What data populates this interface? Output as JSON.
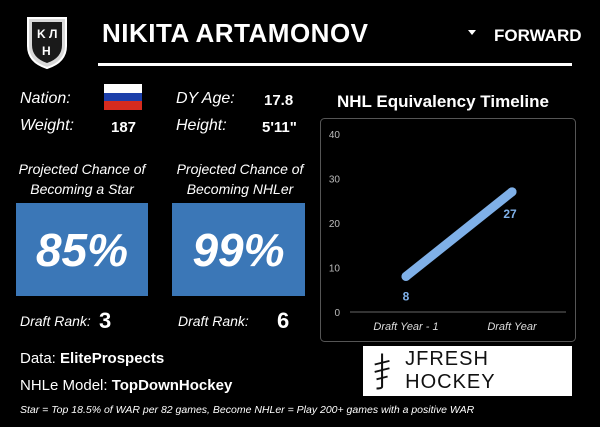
{
  "header": {
    "logo_text": "KHL",
    "player_name": "NIKITA ARTAMONOV",
    "position": "FORWARD"
  },
  "bio": {
    "nation_label": "Nation:",
    "nation_flag_colors": [
      "#ffffff",
      "#1c3faa",
      "#d52b1e"
    ],
    "weight_label": "Weight:",
    "weight_value": "187",
    "dy_age_label": "DY Age:",
    "dy_age_value": "17.8",
    "height_label": "Height:",
    "height_value": "5'11\""
  },
  "star_card": {
    "title_line1": "Projected Chance of",
    "title_line2": "Becoming a Star",
    "value": "85%",
    "rank_label": "Draft Rank:",
    "rank_value": "3"
  },
  "nhler_card": {
    "title_line1": "Projected Chance of",
    "title_line2": "Becoming NHLer",
    "value": "99%",
    "rank_label": "Draft Rank:",
    "rank_value": "6"
  },
  "box_color": "#3b77b7",
  "chart_data": {
    "type": "line",
    "title": "NHL Equivalency Timeline",
    "categories": [
      "Draft Year - 1",
      "Draft Year"
    ],
    "values": [
      8,
      27
    ],
    "data_labels": [
      "8",
      "27"
    ],
    "yticks": [
      "0",
      "10",
      "20",
      "30",
      "40"
    ],
    "ylim": [
      0,
      40
    ],
    "line_color": "#7fb0e8",
    "grid": false
  },
  "footer": {
    "data_label": "Data: ",
    "data_value": "EliteProspects",
    "model_label": "NHLe Model: ",
    "model_value": "TopDownHockey",
    "note": "Star = Top 18.5% of WAR per 82 games, Become NHLer = Play 200+ games with a positive WAR",
    "brand_text": "JFRESH HOCKEY",
    "brand_icon": "jfresh-logo-icon"
  }
}
